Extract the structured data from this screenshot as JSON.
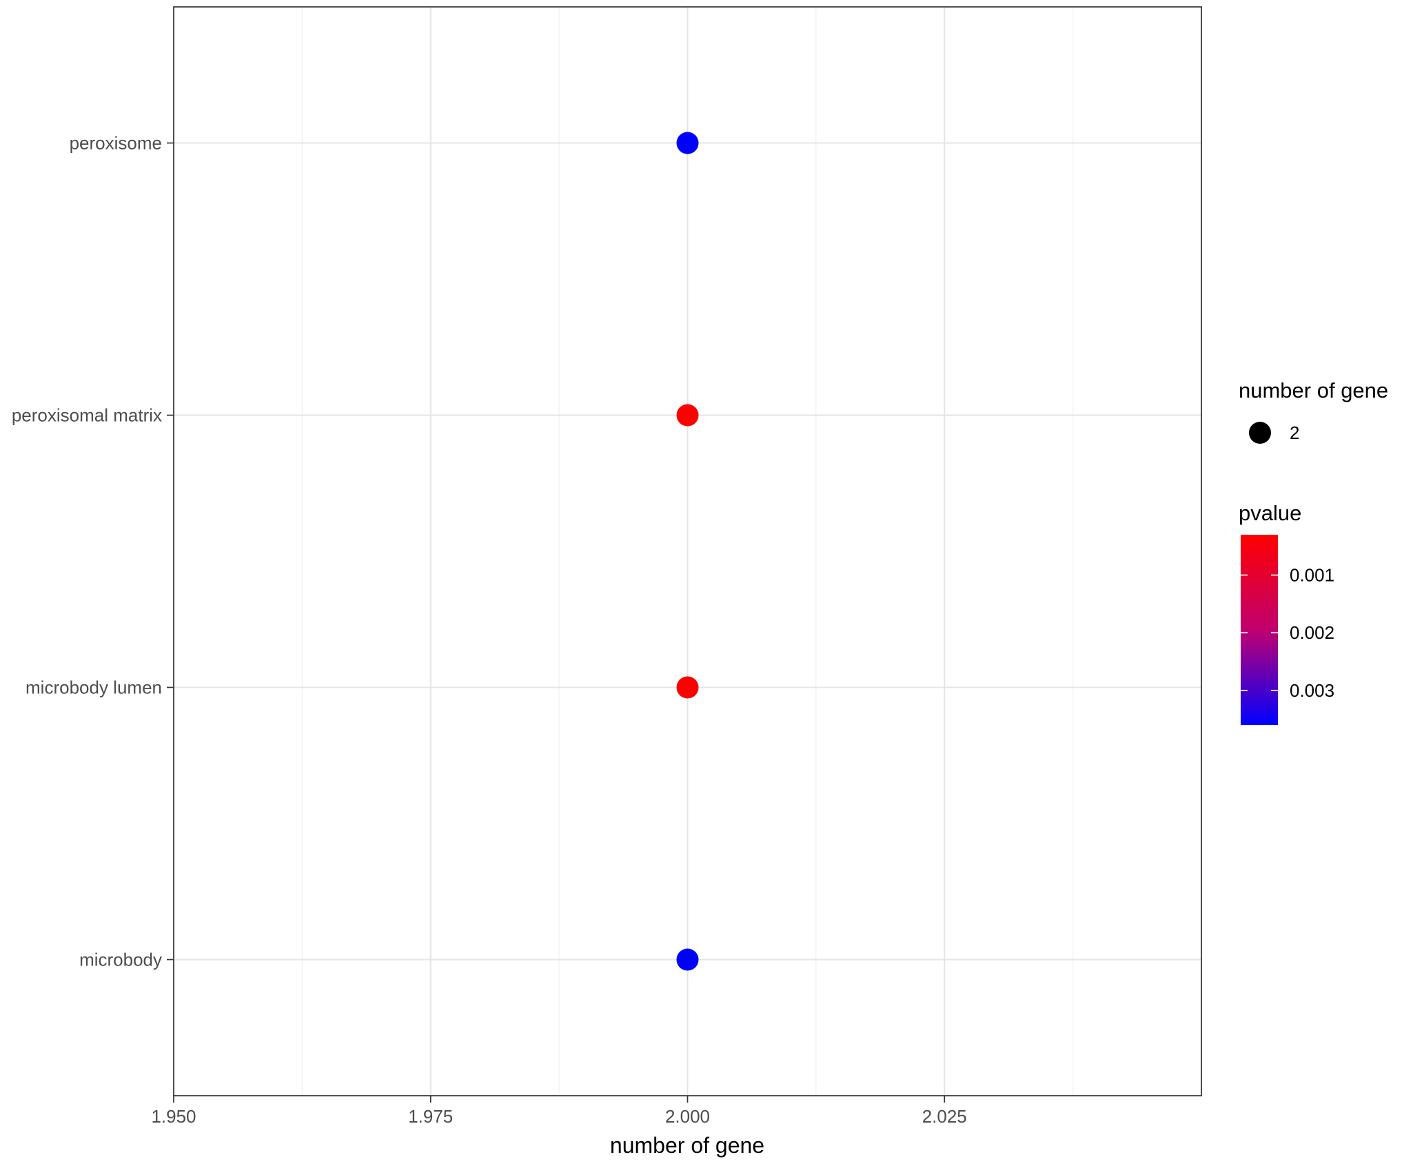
{
  "chart_data": {
    "type": "scatter",
    "xlabel": "number of gene",
    "ylabel": "",
    "xlim": [
      1.95,
      2.05
    ],
    "x_ticks": [
      "1.950",
      "1.975",
      "2.000",
      "2.025"
    ],
    "x_tick_values": [
      1.95,
      1.975,
      2.0,
      2.025
    ],
    "categories": [
      "peroxisome",
      "peroxisomal matrix",
      "microbody lumen",
      "microbody"
    ],
    "points": [
      {
        "category": "peroxisome",
        "x": 2.0,
        "pvalue": 0.0036,
        "count": 2
      },
      {
        "category": "peroxisomal matrix",
        "x": 2.0,
        "pvalue": 0.0003,
        "count": 2
      },
      {
        "category": "microbody lumen",
        "x": 2.0,
        "pvalue": 0.0003,
        "count": 2
      },
      {
        "category": "microbody",
        "x": 2.0,
        "pvalue": 0.0036,
        "count": 2
      }
    ],
    "grid": true,
    "legend_position": "right",
    "size_legend": {
      "title": "number of gene",
      "entries": [
        "2"
      ]
    },
    "color_legend": {
      "title": "pvalue",
      "ticks": [
        "0.001",
        "0.002",
        "0.003"
      ],
      "tick_values": [
        0.001,
        0.002,
        0.003
      ],
      "range": [
        0.0003,
        0.0036
      ],
      "low_color": "#ff0000",
      "high_color": "#0000ff"
    }
  }
}
